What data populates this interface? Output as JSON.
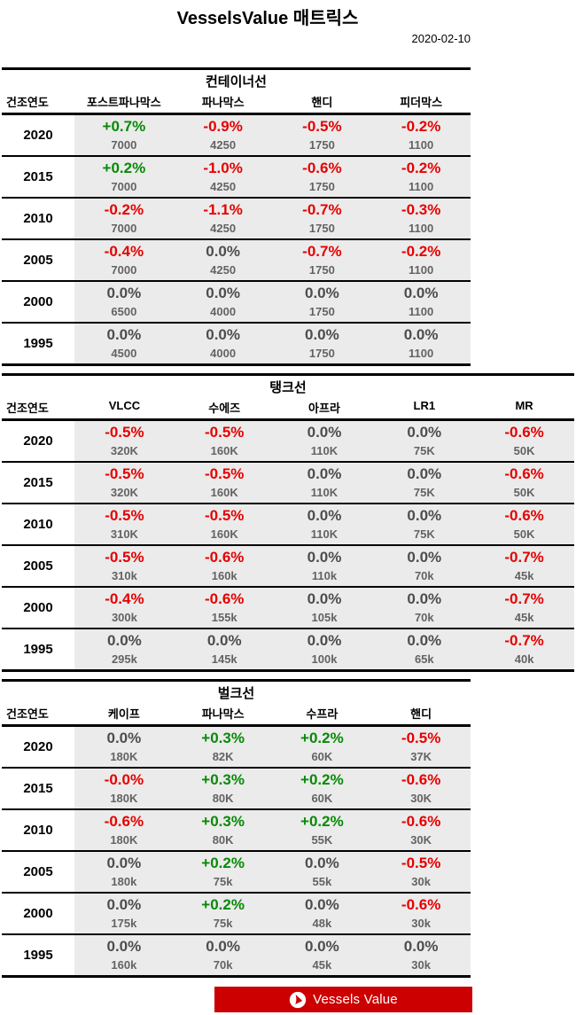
{
  "page": {
    "title": "VesselsValue 매트릭스",
    "date": "2020-02-10"
  },
  "colors": {
    "up": "#078a07",
    "down": "#e60000",
    "flat": "#4d4d4d",
    "size_text": "#636363",
    "band": "#ebebeb",
    "banner": "#cc0001"
  },
  "banner": {
    "label": "Vessels Value",
    "logo": "vesselsvalue-sail-logo"
  },
  "tables": [
    {
      "id": "container",
      "title": "컨테이너선",
      "wide": false,
      "year_header": "건조연도",
      "columns": [
        "포스트파나막스",
        "파나막스",
        "핸디",
        "피더막스"
      ],
      "rows": [
        {
          "year": "2020",
          "cells": [
            [
              "+0.7%",
              "up",
              "7000"
            ],
            [
              "-0.9%",
              "down",
              "4250"
            ],
            [
              "-0.5%",
              "down",
              "1750"
            ],
            [
              "-0.2%",
              "down",
              "1100"
            ]
          ]
        },
        {
          "year": "2015",
          "cells": [
            [
              "+0.2%",
              "up",
              "7000"
            ],
            [
              "-1.0%",
              "down",
              "4250"
            ],
            [
              "-0.6%",
              "down",
              "1750"
            ],
            [
              "-0.2%",
              "down",
              "1100"
            ]
          ]
        },
        {
          "year": "2010",
          "cells": [
            [
              "-0.2%",
              "down",
              "7000"
            ],
            [
              "-1.1%",
              "down",
              "4250"
            ],
            [
              "-0.7%",
              "down",
              "1750"
            ],
            [
              "-0.3%",
              "down",
              "1100"
            ]
          ]
        },
        {
          "year": "2005",
          "cells": [
            [
              "-0.4%",
              "down",
              "7000"
            ],
            [
              "0.0%",
              "flat",
              "4250"
            ],
            [
              "-0.7%",
              "down",
              "1750"
            ],
            [
              "-0.2%",
              "down",
              "1100"
            ]
          ]
        },
        {
          "year": "2000",
          "cells": [
            [
              "0.0%",
              "flat",
              "6500"
            ],
            [
              "0.0%",
              "flat",
              "4000"
            ],
            [
              "0.0%",
              "flat",
              "1750"
            ],
            [
              "0.0%",
              "flat",
              "1100"
            ]
          ]
        },
        {
          "year": "1995",
          "cells": [
            [
              "0.0%",
              "flat",
              "4500"
            ],
            [
              "0.0%",
              "flat",
              "4000"
            ],
            [
              "0.0%",
              "flat",
              "1750"
            ],
            [
              "0.0%",
              "flat",
              "1100"
            ]
          ]
        }
      ]
    },
    {
      "id": "tanker",
      "title": "탱크선",
      "wide": true,
      "year_header": "건조연도",
      "columns": [
        "VLCC",
        "수에즈",
        "아프라",
        "LR1",
        "MR"
      ],
      "rows": [
        {
          "year": "2020",
          "cells": [
            [
              "-0.5%",
              "down",
              "320K"
            ],
            [
              "-0.5%",
              "down",
              "160K"
            ],
            [
              "0.0%",
              "flat",
              "110K"
            ],
            [
              "0.0%",
              "flat",
              "75K"
            ],
            [
              "-0.6%",
              "down",
              "50K"
            ]
          ]
        },
        {
          "year": "2015",
          "cells": [
            [
              "-0.5%",
              "down",
              "320K"
            ],
            [
              "-0.5%",
              "down",
              "160K"
            ],
            [
              "0.0%",
              "flat",
              "110K"
            ],
            [
              "0.0%",
              "flat",
              "75K"
            ],
            [
              "-0.6%",
              "down",
              "50K"
            ]
          ]
        },
        {
          "year": "2010",
          "cells": [
            [
              "-0.5%",
              "down",
              "310K"
            ],
            [
              "-0.5%",
              "down",
              "160K"
            ],
            [
              "0.0%",
              "flat",
              "110K"
            ],
            [
              "0.0%",
              "flat",
              "75K"
            ],
            [
              "-0.6%",
              "down",
              "50K"
            ]
          ]
        },
        {
          "year": "2005",
          "cells": [
            [
              "-0.5%",
              "down",
              "310k"
            ],
            [
              "-0.6%",
              "down",
              "160k"
            ],
            [
              "0.0%",
              "flat",
              "110k"
            ],
            [
              "0.0%",
              "flat",
              "70k"
            ],
            [
              "-0.7%",
              "down",
              "45k"
            ]
          ]
        },
        {
          "year": "2000",
          "cells": [
            [
              "-0.4%",
              "down",
              "300k"
            ],
            [
              "-0.6%",
              "down",
              "155k"
            ],
            [
              "0.0%",
              "flat",
              "105k"
            ],
            [
              "0.0%",
              "flat",
              "70k"
            ],
            [
              "-0.7%",
              "down",
              "45k"
            ]
          ]
        },
        {
          "year": "1995",
          "cells": [
            [
              "0.0%",
              "flat",
              "295k"
            ],
            [
              "0.0%",
              "flat",
              "145k"
            ],
            [
              "0.0%",
              "flat",
              "100k"
            ],
            [
              "0.0%",
              "flat",
              "65k"
            ],
            [
              "-0.7%",
              "down",
              "40k"
            ]
          ]
        }
      ]
    },
    {
      "id": "bulker",
      "title": "벌크선",
      "wide": false,
      "year_header": "건조연도",
      "columns": [
        "케이프",
        "파나막스",
        "수프라",
        "핸디"
      ],
      "rows": [
        {
          "year": "2020",
          "cells": [
            [
              "0.0%",
              "flat",
              "180K"
            ],
            [
              "+0.3%",
              "up",
              "82K"
            ],
            [
              "+0.2%",
              "up",
              "60K"
            ],
            [
              "-0.5%",
              "down",
              "37K"
            ]
          ]
        },
        {
          "year": "2015",
          "cells": [
            [
              "-0.0%",
              "down",
              "180K"
            ],
            [
              "+0.3%",
              "up",
              "80K"
            ],
            [
              "+0.2%",
              "up",
              "60K"
            ],
            [
              "-0.6%",
              "down",
              "30K"
            ]
          ]
        },
        {
          "year": "2010",
          "cells": [
            [
              "-0.6%",
              "down",
              "180K"
            ],
            [
              "+0.3%",
              "up",
              "80K"
            ],
            [
              "+0.2%",
              "up",
              "55K"
            ],
            [
              "-0.6%",
              "down",
              "30K"
            ]
          ]
        },
        {
          "year": "2005",
          "cells": [
            [
              "0.0%",
              "flat",
              "180k"
            ],
            [
              "+0.2%",
              "up",
              "75k"
            ],
            [
              "0.0%",
              "flat",
              "55k"
            ],
            [
              "-0.5%",
              "down",
              "30k"
            ]
          ]
        },
        {
          "year": "2000",
          "cells": [
            [
              "0.0%",
              "flat",
              "175k"
            ],
            [
              "+0.2%",
              "up",
              "75k"
            ],
            [
              "0.0%",
              "flat",
              "48k"
            ],
            [
              "-0.6%",
              "down",
              "30k"
            ]
          ]
        },
        {
          "year": "1995",
          "cells": [
            [
              "0.0%",
              "flat",
              "160k"
            ],
            [
              "0.0%",
              "flat",
              "70k"
            ],
            [
              "0.0%",
              "flat",
              "45k"
            ],
            [
              "0.0%",
              "flat",
              "30k"
            ]
          ]
        }
      ]
    }
  ]
}
